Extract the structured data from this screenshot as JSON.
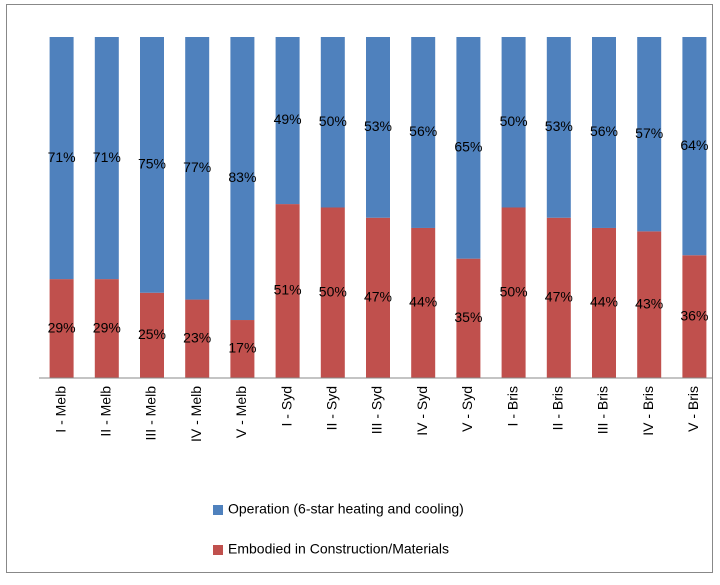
{
  "chart_data": {
    "type": "stacked_bar",
    "categories": [
      "I - Melb",
      "II - Melb",
      "III - Melb",
      "IV - Melb",
      "V - Melb",
      "I - Syd",
      "II - Syd",
      "III - Syd",
      "IV - Syd",
      "V - Syd",
      "I - Bris",
      "II - Bris",
      "III - Bris",
      "IV - Bris",
      "V - Bris"
    ],
    "series": [
      {
        "name": "Embodied in Construction/Materials",
        "color": "#c0504d",
        "values": [
          29,
          29,
          25,
          23,
          17,
          51,
          50,
          47,
          44,
          35,
          50,
          47,
          44,
          43,
          36
        ],
        "value_labels": [
          "29%",
          "29%",
          "25%",
          "23%",
          "17%",
          "51%",
          "50%",
          "47%",
          "44%",
          "35%",
          "50%",
          "47%",
          "44%",
          "43%",
          "36%"
        ]
      },
      {
        "name": "Operation (6-star heating and cooling)",
        "color": "#4f81bd",
        "values": [
          71,
          71,
          75,
          77,
          83,
          49,
          50,
          53,
          56,
          65,
          50,
          53,
          56,
          57,
          64
        ],
        "value_labels": [
          "71%",
          "71%",
          "75%",
          "77%",
          "83%",
          "49%",
          "50%",
          "53%",
          "56%",
          "65%",
          "50%",
          "53%",
          "56%",
          "57%",
          "64%"
        ]
      }
    ],
    "ylim": [
      0,
      100
    ]
  }
}
